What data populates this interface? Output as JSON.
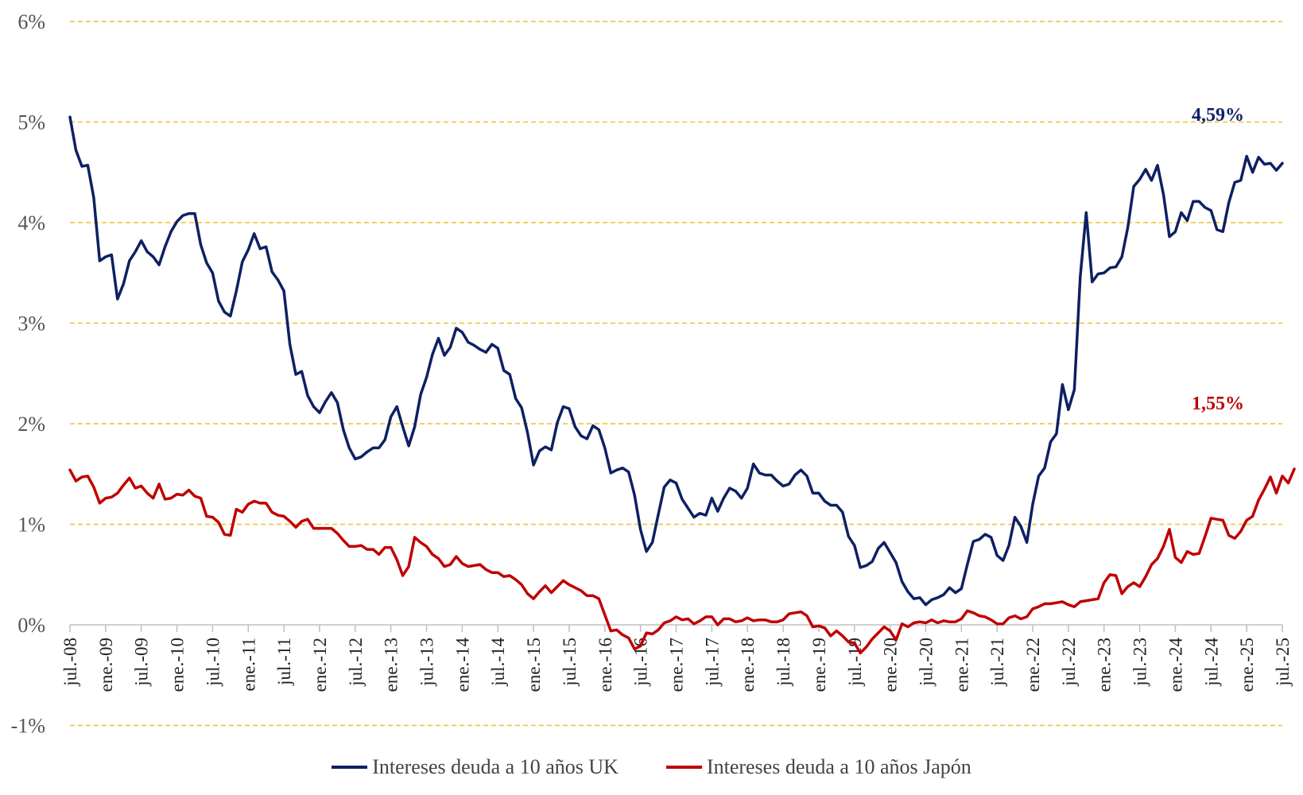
{
  "chart_data": {
    "type": "line",
    "title": "",
    "xlabel": "",
    "ylabel": "",
    "ylim": [
      -1,
      6
    ],
    "y_ticks": [
      "-1%",
      "0%",
      "1%",
      "2%",
      "3%",
      "4%",
      "5%",
      "6%"
    ],
    "grid": "horizontal dashed",
    "grid_color": "#F2C12E",
    "legend_position": "bottom",
    "x_start": "2008-07",
    "x_ticks": [
      "jul.-08",
      "ene.-09",
      "jul.-09",
      "ene.-10",
      "jul.-10",
      "ene.-11",
      "jul.-11",
      "ene.-12",
      "jul.-12",
      "ene.-13",
      "jul.-13",
      "ene.-14",
      "jul.-14",
      "ene.-15",
      "jul.-15",
      "ene.-16",
      "jul.-16",
      "ene.-17",
      "jul.-17",
      "ene.-18",
      "jul.-18",
      "ene.-19",
      "jul.-19",
      "ene.-20",
      "jul.-20",
      "ene.-21",
      "jul.-21",
      "ene.-22",
      "jul.-22",
      "ene.-23",
      "jul.-23",
      "ene.-24",
      "jul.-24",
      "ene.-25",
      "jul.-25"
    ],
    "series": [
      {
        "name": "Intereses deuda a 10 años UK",
        "color": "#0E2063",
        "end_label": "4,59%",
        "values": [
          5.05,
          4.72,
          4.56,
          4.57,
          4.25,
          3.62,
          3.66,
          3.68,
          3.24,
          3.39,
          3.62,
          3.71,
          3.82,
          3.71,
          3.66,
          3.58,
          3.76,
          3.91,
          4.01,
          4.07,
          4.09,
          4.09,
          3.78,
          3.6,
          3.5,
          3.22,
          3.11,
          3.07,
          3.32,
          3.61,
          3.73,
          3.89,
          3.74,
          3.76,
          3.51,
          3.43,
          3.32,
          2.79,
          2.49,
          2.52,
          2.28,
          2.17,
          2.11,
          2.22,
          2.31,
          2.21,
          1.94,
          1.76,
          1.65,
          1.67,
          1.72,
          1.76,
          1.76,
          1.84,
          2.07,
          2.17,
          1.97,
          1.78,
          1.97,
          2.29,
          2.46,
          2.69,
          2.85,
          2.68,
          2.76,
          2.95,
          2.91,
          2.81,
          2.78,
          2.74,
          2.71,
          2.79,
          2.75,
          2.53,
          2.49,
          2.25,
          2.16,
          1.91,
          1.59,
          1.73,
          1.77,
          1.74,
          2.01,
          2.17,
          2.15,
          1.97,
          1.88,
          1.85,
          1.98,
          1.94,
          1.76,
          1.51,
          1.54,
          1.56,
          1.52,
          1.29,
          0.95,
          0.73,
          0.82,
          1.1,
          1.37,
          1.44,
          1.41,
          1.25,
          1.16,
          1.07,
          1.11,
          1.09,
          1.26,
          1.13,
          1.26,
          1.36,
          1.33,
          1.26,
          1.36,
          1.6,
          1.51,
          1.49,
          1.49,
          1.43,
          1.38,
          1.4,
          1.49,
          1.54,
          1.48,
          1.31,
          1.31,
          1.23,
          1.19,
          1.19,
          1.12,
          0.88,
          0.79,
          0.57,
          0.59,
          0.63,
          0.76,
          0.82,
          0.72,
          0.62,
          0.43,
          0.33,
          0.26,
          0.27,
          0.2,
          0.25,
          0.27,
          0.3,
          0.37,
          0.32,
          0.36,
          0.6,
          0.83,
          0.85,
          0.9,
          0.87,
          0.69,
          0.64,
          0.79,
          1.07,
          0.98,
          0.82,
          1.2,
          1.48,
          1.56,
          1.82,
          1.9,
          2.39,
          2.14,
          2.34,
          3.46,
          4.1,
          3.41,
          3.49,
          3.5,
          3.55,
          3.56,
          3.66,
          3.95,
          4.36,
          4.43,
          4.53,
          4.42,
          4.57,
          4.28,
          3.86,
          3.91,
          4.1,
          4.02,
          4.21,
          4.21,
          4.15,
          4.12,
          3.93,
          3.91,
          4.2,
          4.4,
          4.42,
          4.66,
          4.5,
          4.65,
          4.58,
          4.59,
          4.52,
          4.59
        ]
      },
      {
        "name": "Intereses deuda a 10 años Japón",
        "color": "#C00000",
        "end_label": "1,55%",
        "values": [
          1.54,
          1.43,
          1.47,
          1.48,
          1.37,
          1.21,
          1.26,
          1.27,
          1.31,
          1.39,
          1.46,
          1.36,
          1.38,
          1.31,
          1.26,
          1.4,
          1.25,
          1.26,
          1.3,
          1.29,
          1.34,
          1.28,
          1.26,
          1.08,
          1.07,
          1.02,
          0.9,
          0.89,
          1.15,
          1.12,
          1.2,
          1.23,
          1.21,
          1.21,
          1.12,
          1.09,
          1.08,
          1.03,
          0.97,
          1.03,
          1.05,
          0.96,
          0.96,
          0.96,
          0.96,
          0.91,
          0.84,
          0.78,
          0.78,
          0.79,
          0.75,
          0.75,
          0.7,
          0.77,
          0.77,
          0.65,
          0.49,
          0.58,
          0.87,
          0.82,
          0.78,
          0.7,
          0.66,
          0.58,
          0.6,
          0.68,
          0.61,
          0.58,
          0.59,
          0.6,
          0.55,
          0.52,
          0.52,
          0.48,
          0.49,
          0.45,
          0.4,
          0.31,
          0.26,
          0.33,
          0.39,
          0.32,
          0.38,
          0.44,
          0.4,
          0.37,
          0.34,
          0.29,
          0.29,
          0.26,
          0.1,
          -0.06,
          -0.05,
          -0.1,
          -0.13,
          -0.24,
          -0.21,
          -0.08,
          -0.09,
          -0.05,
          0.02,
          0.04,
          0.08,
          0.05,
          0.06,
          0.01,
          0.04,
          0.08,
          0.08,
          0.0,
          0.06,
          0.06,
          0.03,
          0.04,
          0.07,
          0.04,
          0.05,
          0.05,
          0.03,
          0.03,
          0.05,
          0.11,
          0.12,
          0.13,
          0.09,
          -0.02,
          -0.01,
          -0.03,
          -0.11,
          -0.06,
          -0.11,
          -0.17,
          -0.18,
          -0.28,
          -0.22,
          -0.14,
          -0.08,
          -0.02,
          -0.06,
          -0.15,
          0.01,
          -0.02,
          0.02,
          0.03,
          0.02,
          0.05,
          0.02,
          0.04,
          0.03,
          0.03,
          0.06,
          0.14,
          0.12,
          0.09,
          0.08,
          0.05,
          0.01,
          0.01,
          0.07,
          0.09,
          0.06,
          0.08,
          0.16,
          0.18,
          0.21,
          0.21,
          0.22,
          0.23,
          0.2,
          0.18,
          0.23,
          0.24,
          0.25,
          0.26,
          0.42,
          0.5,
          0.49,
          0.31,
          0.38,
          0.42,
          0.38,
          0.48,
          0.6,
          0.66,
          0.78,
          0.95,
          0.67,
          0.62,
          0.73,
          0.7,
          0.71,
          0.88,
          1.06,
          1.05,
          1.04,
          0.89,
          0.86,
          0.93,
          1.04,
          1.08,
          1.24,
          1.35,
          1.47,
          1.31,
          1.48,
          1.41,
          1.55
        ]
      }
    ]
  }
}
